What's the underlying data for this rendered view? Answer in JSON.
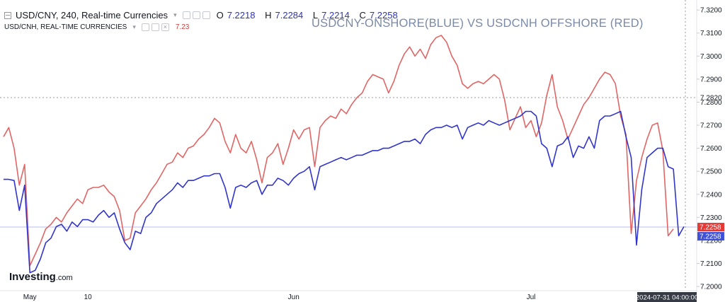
{
  "legend": {
    "main_title": "USD/CNY, 240, Real-time Currencies",
    "dropdown_glyph": "▾",
    "ohlc": [
      {
        "key": "O",
        "value": "7.2218"
      },
      {
        "key": "H",
        "value": "7.2284"
      },
      {
        "key": "L",
        "value": "7.2214"
      },
      {
        "key": "C",
        "value": "7.2258"
      }
    ],
    "sub_title": "USD/CNH, REAL-TIME CURRENCIES",
    "sub_value": "7.23"
  },
  "overlay_title": "USDCNY-ONSHORE(BLUE) VS USDCNH OFFSHORE (RED)",
  "logo": {
    "brand": "Investing",
    "suffix": ".com"
  },
  "colors": {
    "usdcny": "#3135c8",
    "usdcnh": "#e06666",
    "axis_text": "#9598a1",
    "reference_line": "#b9bcf2"
  },
  "chart_data": {
    "type": "line",
    "title": "USDCNY-ONSHORE(BLUE) VS USDCNH OFFSHORE (RED)",
    "xlabel": "",
    "ylabel": "",
    "x_ticks": [
      {
        "label": "May",
        "index": 5
      },
      {
        "label": "10",
        "index": 16
      },
      {
        "label": "Jun",
        "index": 55
      },
      {
        "label": "Jul",
        "index": 100
      }
    ],
    "y_ticks": [
      "7.3200",
      "7.3100",
      "7.3000",
      "7.2900",
      "7.2800",
      "7.2700",
      "7.2600",
      "7.2500",
      "7.2400",
      "7.2300",
      "7.2200",
      "7.2100",
      "7.2000"
    ],
    "ylim": [
      7.1985,
      7.3225
    ],
    "grid": false,
    "dashed_level": {
      "value": 7.282,
      "label": "7.2820"
    },
    "price_tags": [
      {
        "label": "7.2258",
        "value": 7.2258,
        "color": "#e53935"
      },
      {
        "label": "7.2258",
        "value": 7.2258,
        "color": "#3f51d6"
      }
    ],
    "crosshair_label": "2024-07-31 04:00:00",
    "series": [
      {
        "name": "USD/CNY",
        "values": [
          7.2465,
          7.2465,
          7.246,
          7.233,
          7.244,
          7.206,
          7.207,
          7.212,
          7.219,
          7.221,
          7.226,
          7.227,
          7.224,
          7.228,
          7.226,
          7.229,
          7.229,
          7.228,
          7.231,
          7.233,
          7.23,
          7.232,
          7.225,
          7.219,
          7.216,
          7.224,
          7.223,
          7.23,
          7.232,
          7.236,
          7.238,
          7.24,
          7.242,
          7.245,
          7.243,
          7.246,
          7.246,
          7.247,
          7.248,
          7.248,
          7.249,
          7.249,
          7.243,
          7.234,
          7.243,
          7.244,
          7.243,
          7.245,
          7.246,
          7.24,
          7.244,
          7.244,
          7.247,
          7.246,
          7.244,
          7.247,
          7.249,
          7.25,
          7.252,
          7.242,
          7.252,
          7.253,
          7.254,
          7.255,
          7.256,
          7.255,
          7.256,
          7.257,
          7.257,
          7.258,
          7.259,
          7.259,
          7.26,
          7.26,
          7.261,
          7.262,
          7.263,
          7.263,
          7.264,
          7.262,
          7.266,
          7.268,
          7.269,
          7.269,
          7.27,
          7.269,
          7.27,
          7.264,
          7.269,
          7.27,
          7.271,
          7.27,
          7.272,
          7.271,
          7.27,
          7.271,
          7.272,
          7.273,
          7.274,
          7.276,
          7.276,
          7.274,
          7.262,
          7.26,
          7.252,
          7.261,
          7.262,
          7.265,
          7.256,
          7.261,
          7.26,
          7.265,
          7.26,
          7.272,
          7.274,
          7.274,
          7.275,
          7.276,
          7.265,
          7.256,
          7.218,
          7.242,
          7.256,
          7.258,
          7.26,
          7.26,
          7.252,
          7.251,
          7.222,
          7.226
        ],
        "color": "#3135c8"
      },
      {
        "name": "USD/CNH",
        "values": [
          7.265,
          7.269,
          7.26,
          7.244,
          7.253,
          7.209,
          7.214,
          7.219,
          7.225,
          7.227,
          7.23,
          7.228,
          7.232,
          7.235,
          7.238,
          7.236,
          7.242,
          7.243,
          7.243,
          7.244,
          7.241,
          7.239,
          7.233,
          7.22,
          7.221,
          7.232,
          7.235,
          7.238,
          7.242,
          7.245,
          7.249,
          7.253,
          7.254,
          7.258,
          7.256,
          7.26,
          7.261,
          7.264,
          7.266,
          7.269,
          7.273,
          7.271,
          7.263,
          7.258,
          7.266,
          7.26,
          7.258,
          7.263,
          7.255,
          7.245,
          7.256,
          7.258,
          7.262,
          7.253,
          7.26,
          7.268,
          7.264,
          7.268,
          7.269,
          7.252,
          7.269,
          7.272,
          7.274,
          7.273,
          7.277,
          7.275,
          7.279,
          7.282,
          7.284,
          7.289,
          7.292,
          7.291,
          7.29,
          7.284,
          7.289,
          7.296,
          7.301,
          7.304,
          7.3,
          7.303,
          7.299,
          7.305,
          7.308,
          7.309,
          7.306,
          7.3,
          7.296,
          7.288,
          7.286,
          7.288,
          7.289,
          7.288,
          7.29,
          7.292,
          7.29,
          7.281,
          7.268,
          7.273,
          7.278,
          7.269,
          7.272,
          7.265,
          7.271,
          7.283,
          7.292,
          7.278,
          7.272,
          7.264,
          7.269,
          7.274,
          7.279,
          7.282,
          7.286,
          7.29,
          7.293,
          7.292,
          7.288,
          7.274,
          7.266,
          7.223,
          7.246,
          7.256,
          7.264,
          7.27,
          7.271,
          7.259,
          7.222,
          7.225
        ],
        "color": "#e06666"
      }
    ]
  }
}
